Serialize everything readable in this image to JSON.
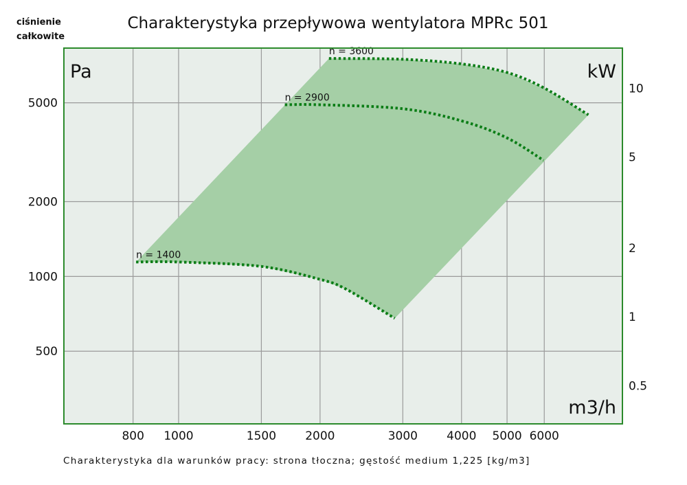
{
  "chart_data": {
    "type": "area",
    "title": "Charakterystyka przepływowa wentylatora MPRc 501",
    "ylabel_top": "ciśnienie całkowite",
    "yunit_left": "Pa",
    "yunit_right": "kW",
    "xunit": "m3/h",
    "footnote": "Charakterystyka dla warunków pracy: strona tłoczna; gęstość medium 1,225 [kg/m3]",
    "xscale": "log",
    "yscale": "log",
    "xlim": [
      570,
      8800
    ],
    "ylim": [
      255,
      8300
    ],
    "y2lim": [
      0.34,
      15
    ],
    "grid": true,
    "x_ticks": [
      800,
      1000,
      1500,
      2000,
      3000,
      4000,
      5000,
      6000
    ],
    "x_tick_labels": [
      "800",
      "1000",
      "1500",
      "2000",
      "3000",
      "4000",
      "5000",
      "6000"
    ],
    "y_ticks": [
      500,
      1000,
      2000,
      5000
    ],
    "y_tick_labels": [
      "500",
      "1000",
      "2000",
      "5000"
    ],
    "y2_ticks": [
      0.5,
      1,
      2,
      5,
      10
    ],
    "y2_tick_labels": [
      "0.5",
      "1",
      "2",
      "5",
      "10"
    ],
    "series": [
      {
        "name": "n = 3600",
        "x": [
          2089,
          3000,
          4000,
          5000,
          6000,
          7450
        ],
        "y": [
          7540,
          7480,
          7170,
          6620,
          5730,
          4470
        ]
      },
      {
        "name": "n = 2900",
        "x": [
          1683,
          2000,
          3000,
          4000,
          5000,
          5980
        ],
        "y": [
          4910,
          4910,
          4730,
          4230,
          3610,
          2930
        ]
      },
      {
        "name": "n = 1400",
        "x": [
          812,
          1000,
          1500,
          2000,
          2276,
          2884
        ],
        "y": [
          1143,
          1143,
          1097,
          973,
          887,
          678
        ]
      }
    ],
    "colors": {
      "plot_bg": "#e8eeea",
      "area_fill": "#a5cfa6",
      "frame": "#2b8a2b",
      "curve": "#0b7d16",
      "grid": "#9a9a9a"
    }
  }
}
